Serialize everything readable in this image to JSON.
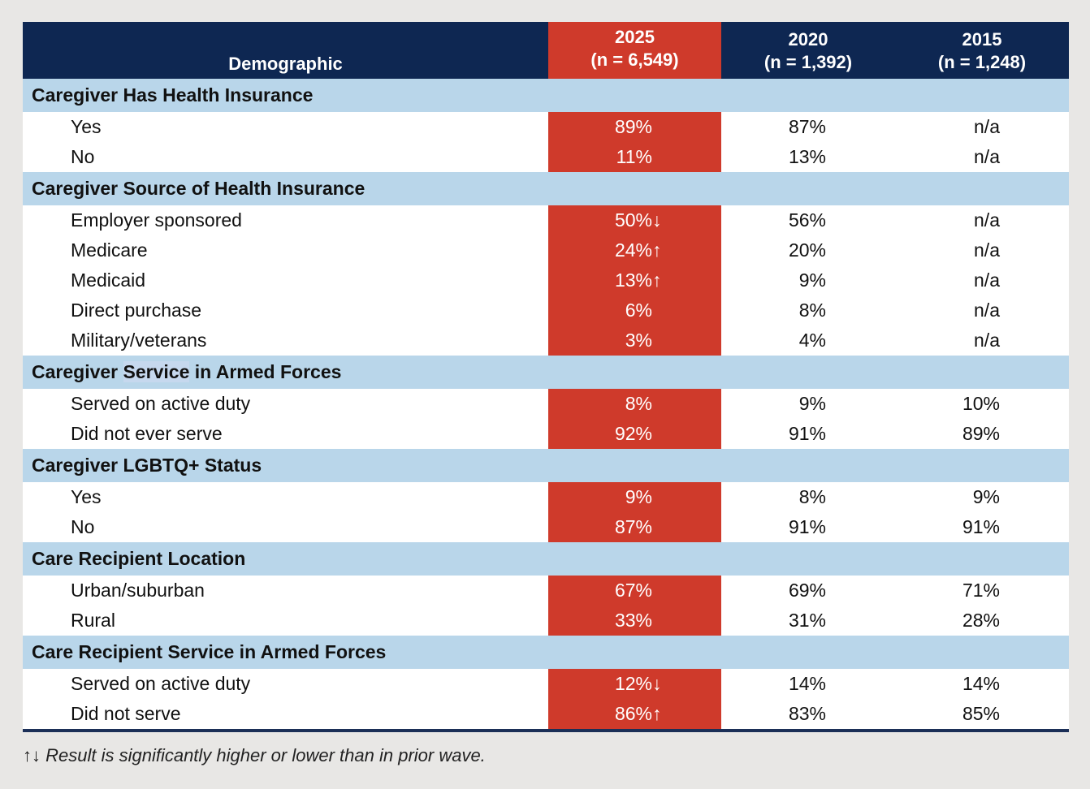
{
  "header": {
    "demographic": "Demographic",
    "cols": [
      {
        "year": "2025",
        "n": "(n = 6,549)"
      },
      {
        "year": "2020",
        "n": "(n = 1,392)"
      },
      {
        "year": "2015",
        "n": "(n = 1,248)"
      }
    ]
  },
  "colors": {
    "navy": "#0e2752",
    "red": "#cf3a2b",
    "section": "#b9d6ea",
    "background": "#e8e7e5"
  },
  "sections": [
    {
      "title": "Caregiver Has Health Insurance",
      "rows": [
        {
          "label": "Yes",
          "v2025": "89%",
          "arrow": "",
          "v2020": "87%",
          "v2015": "n/a"
        },
        {
          "label": "No",
          "v2025": "11%",
          "arrow": "",
          "v2020": "13%",
          "v2015": "n/a"
        }
      ]
    },
    {
      "title": "Caregiver Source of Health Insurance",
      "rows": [
        {
          "label": "Employer sponsored",
          "v2025": "50%",
          "arrow": "↓",
          "v2020": "56%",
          "v2015": "n/a"
        },
        {
          "label": "Medicare",
          "v2025": "24%",
          "arrow": "↑",
          "v2020": "20%",
          "v2015": "n/a"
        },
        {
          "label": "Medicaid",
          "v2025": "13%",
          "arrow": "↑",
          "v2020": "9%",
          "v2015": "n/a"
        },
        {
          "label": "Direct purchase",
          "v2025": "6%",
          "arrow": "",
          "v2020": "8%",
          "v2015": "n/a"
        },
        {
          "label": "Military/veterans",
          "v2025": "3%",
          "arrow": "",
          "v2020": "4%",
          "v2015": "n/a"
        }
      ]
    },
    {
      "title_pre": "Caregiver ",
      "title_hl": "Service",
      "title_post": " in Armed Forces",
      "rows": [
        {
          "label": "Served on active duty",
          "v2025": "8%",
          "arrow": "",
          "v2020": "9%",
          "v2015": "10%"
        },
        {
          "label": "Did not ever serve",
          "v2025": "92%",
          "arrow": "",
          "v2020": "91%",
          "v2015": "89%"
        }
      ]
    },
    {
      "title": "Caregiver LGBTQ+ Status",
      "rows": [
        {
          "label": "Yes",
          "v2025": "9%",
          "arrow": "",
          "v2020": "8%",
          "v2015": "9%"
        },
        {
          "label": "No",
          "v2025": "87%",
          "arrow": "",
          "v2020": "91%",
          "v2015": "91%"
        }
      ]
    },
    {
      "title": "Care Recipient Location",
      "rows": [
        {
          "label": "Urban/suburban",
          "v2025": "67%",
          "arrow": "",
          "v2020": "69%",
          "v2015": "71%"
        },
        {
          "label": "Rural",
          "v2025": "33%",
          "arrow": "",
          "v2020": "31%",
          "v2015": "28%"
        }
      ]
    },
    {
      "title": "Care Recipient Service in Armed Forces",
      "rows": [
        {
          "label": "Served on active duty",
          "v2025": "12%",
          "arrow": "↓",
          "v2020": "14%",
          "v2015": "14%"
        },
        {
          "label": "Did not serve",
          "v2025": "86%",
          "arrow": "↑",
          "v2020": "83%",
          "v2015": "85%"
        }
      ]
    }
  ],
  "footnote": {
    "symbols": "↑↓",
    "text": " Result is significantly higher or lower than in prior wave."
  }
}
